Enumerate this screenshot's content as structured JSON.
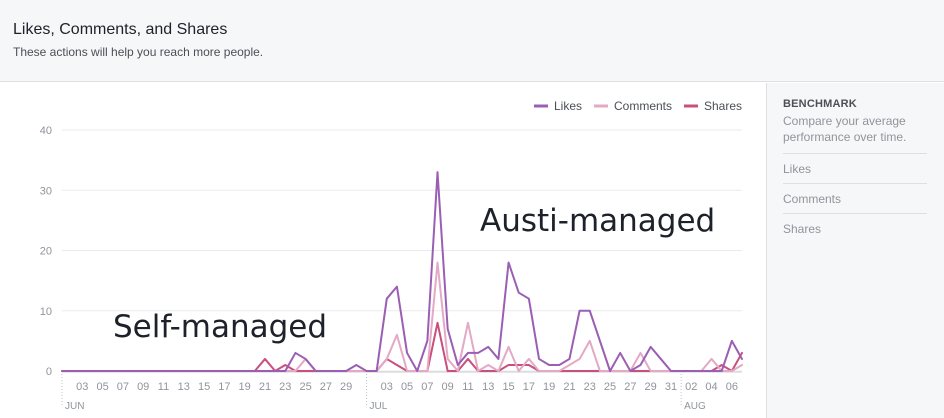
{
  "header": {
    "title": "Likes, Comments, and Shares",
    "subtitle": "These actions will help you reach more people."
  },
  "benchmark": {
    "title": "BENCHMARK",
    "description": "Compare your average performance over time.",
    "items": [
      "Likes",
      "Comments",
      "Shares"
    ]
  },
  "colors": {
    "likes": "#9a5fb4",
    "comments": "#e3a9c5",
    "shares": "#c94f7c",
    "grid": "#e9ebee",
    "axis": "#cccccc"
  },
  "chart_data": {
    "type": "line",
    "title": "",
    "xlabel": "",
    "ylabel": "",
    "ylim": [
      0,
      40
    ],
    "yticks": [
      0,
      10,
      20,
      30,
      40
    ],
    "grid": true,
    "legend_position": "top-right",
    "x": [
      "Jun 01",
      "Jun 02",
      "Jun 03",
      "Jun 04",
      "Jun 05",
      "Jun 06",
      "Jun 07",
      "Jun 08",
      "Jun 09",
      "Jun 10",
      "Jun 11",
      "Jun 12",
      "Jun 13",
      "Jun 14",
      "Jun 15",
      "Jun 16",
      "Jun 17",
      "Jun 18",
      "Jun 19",
      "Jun 20",
      "Jun 21",
      "Jun 22",
      "Jun 23",
      "Jun 24",
      "Jun 25",
      "Jun 26",
      "Jun 27",
      "Jun 28",
      "Jun 29",
      "Jun 30",
      "Jul 01",
      "Jul 02",
      "Jul 03",
      "Jul 04",
      "Jul 05",
      "Jul 06",
      "Jul 07",
      "Jul 08",
      "Jul 09",
      "Jul 10",
      "Jul 11",
      "Jul 12",
      "Jul 13",
      "Jul 14",
      "Jul 15",
      "Jul 16",
      "Jul 17",
      "Jul 18",
      "Jul 19",
      "Jul 20",
      "Jul 21",
      "Jul 22",
      "Jul 23",
      "Jul 24",
      "Jul 25",
      "Jul 26",
      "Jul 27",
      "Jul 28",
      "Jul 29",
      "Jul 30",
      "Jul 31",
      "Aug 01",
      "Aug 02",
      "Aug 03",
      "Aug 04",
      "Aug 05",
      "Aug 06",
      "Aug 07"
    ],
    "tick_labels": [
      "03",
      "05",
      "07",
      "09",
      "11",
      "13",
      "15",
      "17",
      "19",
      "21",
      "23",
      "25",
      "27",
      "29",
      "03",
      "05",
      "07",
      "09",
      "11",
      "13",
      "15",
      "17",
      "19",
      "21",
      "23",
      "25",
      "27",
      "29",
      "31",
      "02",
      "04",
      "06"
    ],
    "tick_indices": [
      2,
      4,
      6,
      8,
      10,
      12,
      14,
      16,
      18,
      20,
      22,
      24,
      26,
      28,
      32,
      34,
      36,
      38,
      40,
      42,
      44,
      46,
      48,
      50,
      52,
      54,
      56,
      58,
      60,
      62,
      64,
      66
    ],
    "month_labels": [
      {
        "label": "JUN",
        "index": 0
      },
      {
        "label": "JUL",
        "index": 30
      },
      {
        "label": "AUG",
        "index": 61
      }
    ],
    "series": [
      {
        "name": "Likes",
        "values": [
          0,
          0,
          0,
          0,
          0,
          0,
          0,
          0,
          0,
          0,
          0,
          0,
          0,
          0,
          0,
          0,
          0,
          0,
          0,
          0,
          0,
          0,
          0,
          3,
          2,
          0,
          0,
          0,
          0,
          1,
          0,
          0,
          12,
          14,
          3,
          0,
          5,
          33,
          7,
          1,
          3,
          3,
          4,
          2,
          18,
          13,
          12,
          2,
          1,
          1,
          2,
          10,
          10,
          5,
          0,
          3,
          0,
          1,
          4,
          2,
          0,
          0,
          0,
          0,
          0,
          0,
          5,
          2
        ]
      },
      {
        "name": "Comments",
        "values": [
          0,
          0,
          0,
          0,
          0,
          0,
          0,
          0,
          0,
          0,
          0,
          0,
          0,
          0,
          0,
          0,
          0,
          0,
          0,
          0,
          0,
          0,
          0,
          0,
          2,
          0,
          0,
          0,
          0,
          0,
          0,
          0,
          2,
          6,
          0,
          0,
          0,
          18,
          2,
          0,
          8,
          0,
          1,
          0,
          4,
          0,
          2,
          0,
          0,
          0,
          1,
          2,
          5,
          0,
          0,
          0,
          0,
          3,
          0,
          0,
          0,
          0,
          0,
          0,
          2,
          0,
          0,
          1
        ]
      },
      {
        "name": "Shares",
        "values": [
          0,
          0,
          0,
          0,
          0,
          0,
          0,
          0,
          0,
          0,
          0,
          0,
          0,
          0,
          0,
          0,
          0,
          0,
          0,
          0,
          2,
          0,
          1,
          0,
          0,
          0,
          0,
          0,
          0,
          0,
          0,
          0,
          2,
          1,
          0,
          0,
          0,
          8,
          0,
          0,
          2,
          0,
          0,
          0,
          1,
          1,
          1,
          0,
          0,
          0,
          0,
          0,
          0,
          0,
          0,
          0,
          0,
          0,
          0,
          0,
          0,
          0,
          0,
          0,
          0,
          1,
          0,
          3
        ]
      }
    ],
    "annotations": [
      "Self-managed",
      "Austi-managed"
    ]
  }
}
